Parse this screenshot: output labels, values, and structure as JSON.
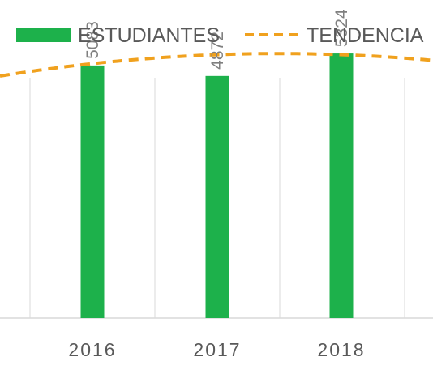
{
  "chart_data": {
    "type": "bar",
    "categories": [
      "2016",
      "2017",
      "2018"
    ],
    "series": [
      {
        "name": "ESTUDIANTES",
        "values": [
          5083,
          4872,
          5324
        ],
        "color": "#1db14b",
        "data_labels": [
          "5083",
          "4872",
          "5324"
        ]
      },
      {
        "name": "TENDENCIA",
        "type": "line",
        "style": "dashed",
        "color": "#f0a11e",
        "values": [
          5120,
          5300,
          5300
        ]
      }
    ],
    "title": "",
    "xlabel": "",
    "ylabel": "",
    "ylim": [
      0,
      6400
    ],
    "grid": "vertical",
    "legend_position": "top",
    "colors": {
      "gridline": "#d9d9d9",
      "text": "#595959",
      "data_label": "#7f7f7f"
    }
  }
}
